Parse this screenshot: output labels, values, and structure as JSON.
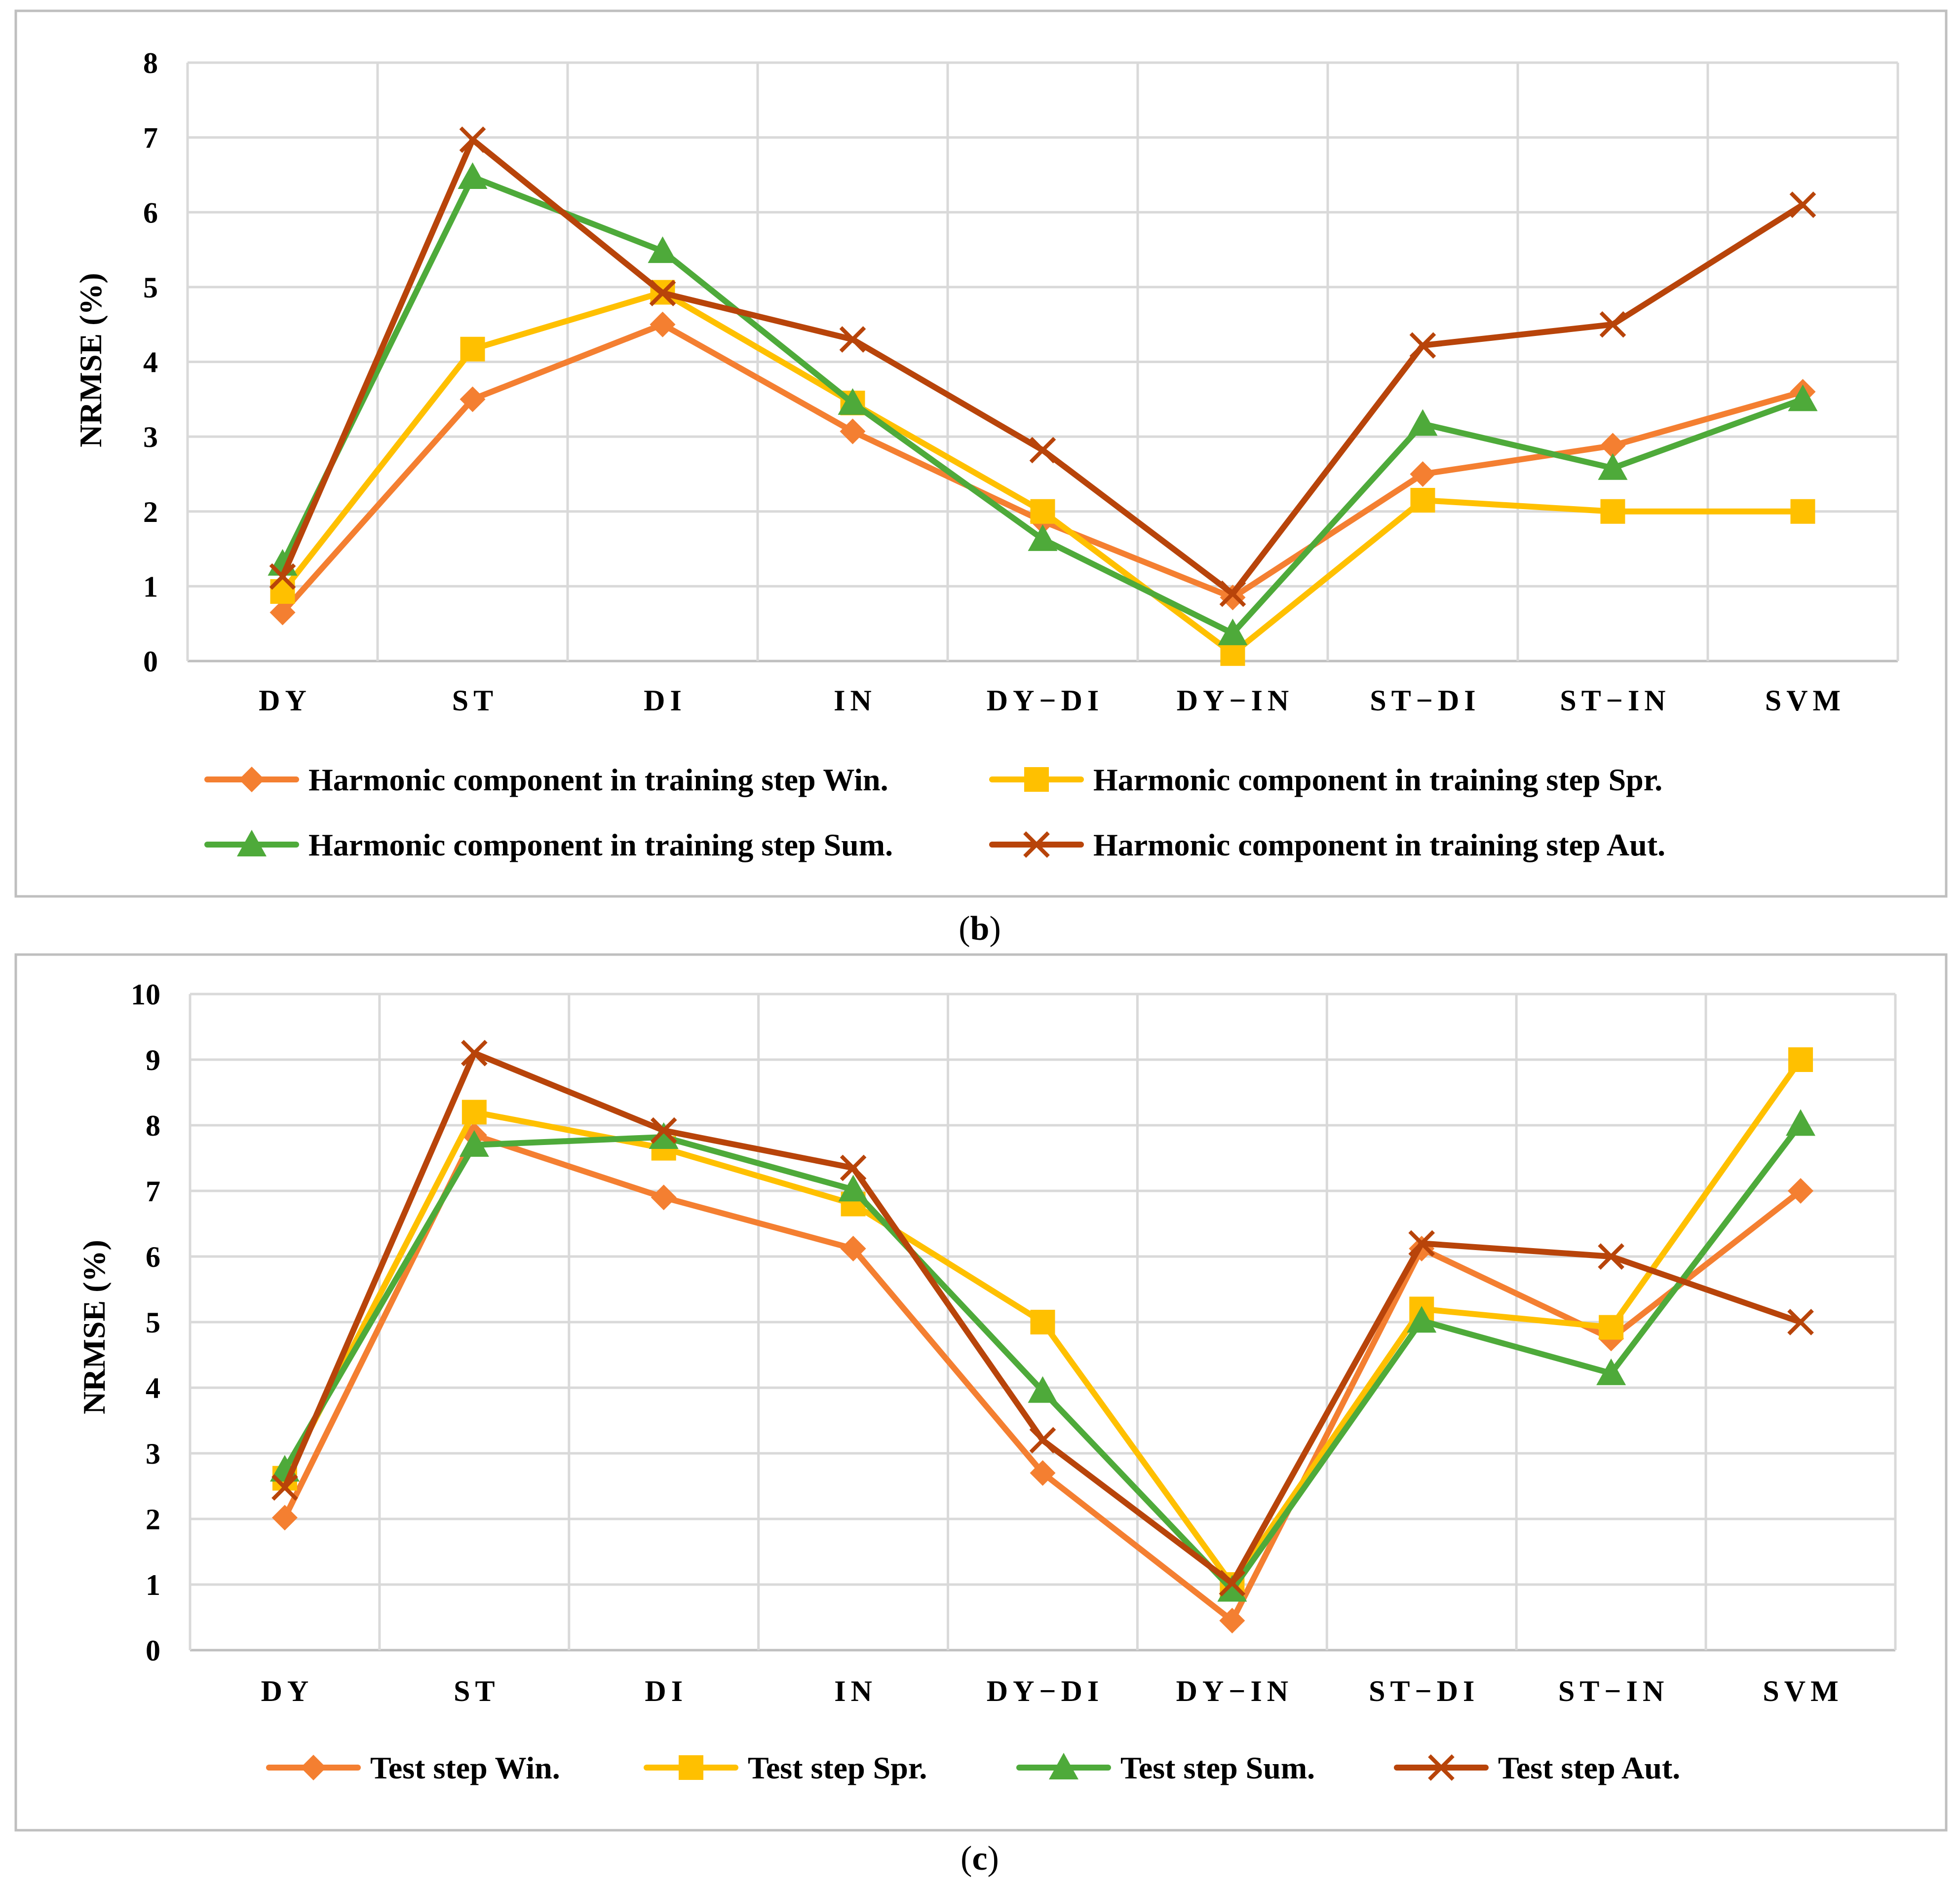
{
  "colors": {
    "win": "#F47F31",
    "spr": "#FFC000",
    "sum": "#4EAA3A",
    "aut": "#B8440A",
    "grid": "#D9D9D9",
    "border": "#BFBFBF"
  },
  "chart_data": [
    {
      "type": "line",
      "panel": "b",
      "caption_open": "(",
      "caption_letter": "b",
      "caption_close": ")",
      "ylabel": "NRMSE  (%)",
      "xlabel": "",
      "ylim": [
        0,
        8
      ],
      "yticks": [
        "0",
        "1",
        "2",
        "3",
        "4",
        "5",
        "6",
        "7",
        "8"
      ],
      "categories": [
        "DY",
        "ST",
        "DI",
        "IN",
        "DY−DI",
        "DY−IN",
        "ST−DI",
        "ST−IN",
        "SVM"
      ],
      "legend_position": "bottom",
      "series": [
        {
          "name": "Harmonic component in training step Win.",
          "key": "win",
          "marker": "diamond",
          "values": [
            0.65,
            3.5,
            4.5,
            3.07,
            1.87,
            0.85,
            2.5,
            2.88,
            3.6
          ]
        },
        {
          "name": "Harmonic component in training step Spr.",
          "key": "spr",
          "marker": "square",
          "values": [
            0.93,
            4.17,
            4.93,
            3.45,
            2.0,
            0.1,
            2.15,
            2.0,
            2.0
          ]
        },
        {
          "name": "Harmonic component in training step Sum.",
          "key": "sum",
          "marker": "triangle",
          "values": [
            1.3,
            6.47,
            5.48,
            3.45,
            1.63,
            0.37,
            3.17,
            2.58,
            3.5
          ]
        },
        {
          "name": "Harmonic component in training step Aut.",
          "key": "aut",
          "marker": "x",
          "values": [
            1.13,
            6.97,
            4.92,
            4.3,
            2.82,
            0.9,
            4.22,
            4.5,
            6.1
          ]
        }
      ]
    },
    {
      "type": "line",
      "panel": "c",
      "caption_open": "(",
      "caption_letter": "c",
      "caption_close": ")",
      "ylabel": "NRMSE  (%)",
      "xlabel": "",
      "ylim": [
        0,
        10
      ],
      "yticks": [
        "0",
        "1",
        "2",
        "3",
        "4",
        "5",
        "6",
        "7",
        "8",
        "9",
        "10"
      ],
      "categories": [
        "DY",
        "ST",
        "DI",
        "IN",
        "DY−DI",
        "DY−IN",
        "ST−DI",
        "ST−IN",
        "SVM"
      ],
      "legend_position": "bottom",
      "series": [
        {
          "name": "Test step Win.",
          "key": "win",
          "marker": "diamond",
          "values": [
            2.02,
            7.85,
            6.9,
            6.12,
            2.7,
            0.45,
            6.12,
            4.75,
            7.0
          ]
        },
        {
          "name": "Test step Spr.",
          "key": "spr",
          "marker": "square",
          "values": [
            2.62,
            8.2,
            7.65,
            6.8,
            5.0,
            1.0,
            5.2,
            4.92,
            9.0
          ]
        },
        {
          "name": "Test step Sum.",
          "key": "sum",
          "marker": "triangle",
          "values": [
            2.75,
            7.7,
            7.82,
            7.02,
            3.95,
            0.92,
            5.02,
            4.22,
            8.02
          ]
        },
        {
          "name": "Test step Aut.",
          "key": "aut",
          "marker": "x",
          "values": [
            2.48,
            9.1,
            7.92,
            7.35,
            3.2,
            1.02,
            6.2,
            6.0,
            5.0
          ]
        }
      ]
    }
  ]
}
